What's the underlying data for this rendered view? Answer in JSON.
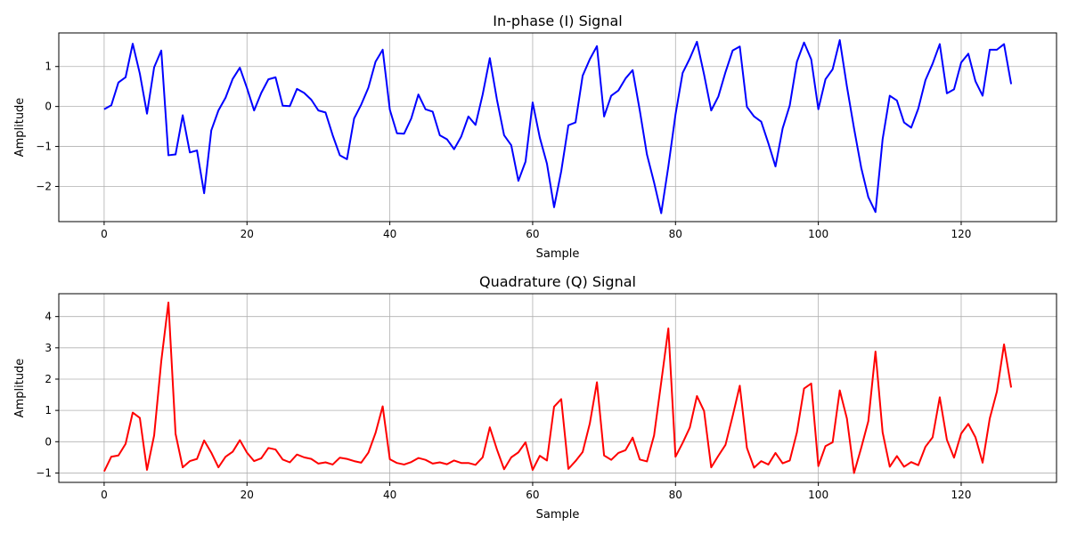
{
  "chart_data": [
    {
      "type": "line",
      "title": "In-phase (I) Signal",
      "xlabel": "Sample",
      "ylabel": "Amplitude",
      "xlim": [
        -6.35,
        133.35
      ],
      "ylim": [
        -2.88,
        1.84
      ],
      "xticks": [
        0,
        20,
        40,
        60,
        80,
        100,
        120
      ],
      "xtick_labels": [
        "0",
        "20",
        "40",
        "60",
        "80",
        "100",
        "120"
      ],
      "yticks": [
        -2,
        -1,
        0,
        1
      ],
      "ytick_labels": [
        "−2",
        "−1",
        "0",
        "1"
      ],
      "grid": true,
      "legend": "none",
      "series": [
        {
          "color": "#0000ff",
          "x_start": 0,
          "values": [
            -0.07,
            0.03,
            0.6,
            0.73,
            1.57,
            0.82,
            -0.18,
            0.98,
            1.4,
            -1.22,
            -1.2,
            -0.22,
            -1.15,
            -1.1,
            -2.17,
            -0.6,
            -0.1,
            0.22,
            0.69,
            0.97,
            0.46,
            -0.1,
            0.34,
            0.68,
            0.73,
            0.02,
            0.01,
            0.44,
            0.34,
            0.17,
            -0.1,
            -0.15,
            -0.72,
            -1.22,
            -1.32,
            -0.3,
            0.05,
            0.47,
            1.12,
            1.42,
            -0.08,
            -0.67,
            -0.68,
            -0.3,
            0.3,
            -0.07,
            -0.13,
            -0.72,
            -0.82,
            -1.07,
            -0.75,
            -0.25,
            -0.46,
            0.3,
            1.21,
            0.17,
            -0.72,
            -0.97,
            -1.86,
            -1.38,
            0.1,
            -0.78,
            -1.43,
            -2.52,
            -1.62,
            -0.47,
            -0.4,
            0.77,
            1.18,
            1.51,
            -0.25,
            0.27,
            0.4,
            0.7,
            0.91,
            -0.1,
            -1.2,
            -1.9,
            -2.67,
            -1.5,
            -0.2,
            0.84,
            1.2,
            1.62,
            0.8,
            -0.1,
            0.25,
            0.86,
            1.4,
            1.5,
            -0.01,
            -0.25,
            -0.38,
            -0.92,
            -1.5,
            -0.55,
            0.03,
            1.12,
            1.6,
            1.18,
            -0.07,
            0.68,
            0.93,
            1.66,
            0.5,
            -0.55,
            -1.53,
            -2.27,
            -2.64,
            -0.82,
            0.27,
            0.15,
            -0.4,
            -0.53,
            -0.05,
            0.66,
            1.07,
            1.56,
            0.33,
            0.43,
            1.1,
            1.32,
            0.63,
            0.27,
            1.42,
            1.42,
            1.56,
            0.56
          ]
        }
      ]
    },
    {
      "type": "line",
      "title": "Quadrature (Q) Signal",
      "xlabel": "Sample",
      "ylabel": "Amplitude",
      "xlim": [
        -6.35,
        133.35
      ],
      "ylim": [
        -1.3,
        4.73
      ],
      "xticks": [
        0,
        20,
        40,
        60,
        80,
        100,
        120
      ],
      "xtick_labels": [
        "0",
        "20",
        "40",
        "60",
        "80",
        "100",
        "120"
      ],
      "yticks": [
        -1,
        0,
        1,
        2,
        3,
        4
      ],
      "ytick_labels": [
        "−1",
        "0",
        "1",
        "2",
        "3",
        "4"
      ],
      "grid": true,
      "legend": "none",
      "series": [
        {
          "color": "#ff0000",
          "x_start": 0,
          "values": [
            -0.95,
            -0.48,
            -0.44,
            -0.07,
            0.93,
            0.76,
            -0.9,
            0.2,
            2.58,
            4.45,
            0.25,
            -0.82,
            -0.62,
            -0.55,
            0.04,
            -0.35,
            -0.82,
            -0.48,
            -0.32,
            0.05,
            -0.35,
            -0.62,
            -0.53,
            -0.2,
            -0.25,
            -0.57,
            -0.66,
            -0.41,
            -0.5,
            -0.55,
            -0.7,
            -0.66,
            -0.73,
            -0.51,
            -0.55,
            -0.62,
            -0.67,
            -0.35,
            0.28,
            1.13,
            -0.56,
            -0.68,
            -0.73,
            -0.65,
            -0.52,
            -0.58,
            -0.7,
            -0.66,
            -0.72,
            -0.6,
            -0.68,
            -0.68,
            -0.74,
            -0.5,
            0.46,
            -0.25,
            -0.88,
            -0.5,
            -0.34,
            -0.02,
            -0.9,
            -0.45,
            -0.6,
            1.12,
            1.36,
            -0.87,
            -0.62,
            -0.33,
            0.58,
            1.9,
            -0.44,
            -0.58,
            -0.36,
            -0.27,
            0.13,
            -0.57,
            -0.63,
            0.2,
            1.9,
            3.62,
            -0.48,
            -0.04,
            0.45,
            1.46,
            0.98,
            -0.82,
            -0.45,
            -0.1,
            0.82,
            1.79,
            -0.2,
            -0.83,
            -0.62,
            -0.73,
            -0.36,
            -0.69,
            -0.6,
            0.3,
            1.7,
            1.86,
            -0.78,
            -0.14,
            -0.02,
            1.64,
            0.74,
            -1.0,
            -0.2,
            0.66,
            2.88,
            0.3,
            -0.8,
            -0.46,
            -0.8,
            -0.65,
            -0.75,
            -0.16,
            0.14,
            1.42,
            0.06,
            -0.51,
            0.26,
            0.57,
            0.14,
            -0.67,
            0.74,
            1.6,
            3.11,
            1.73
          ]
        }
      ]
    }
  ]
}
